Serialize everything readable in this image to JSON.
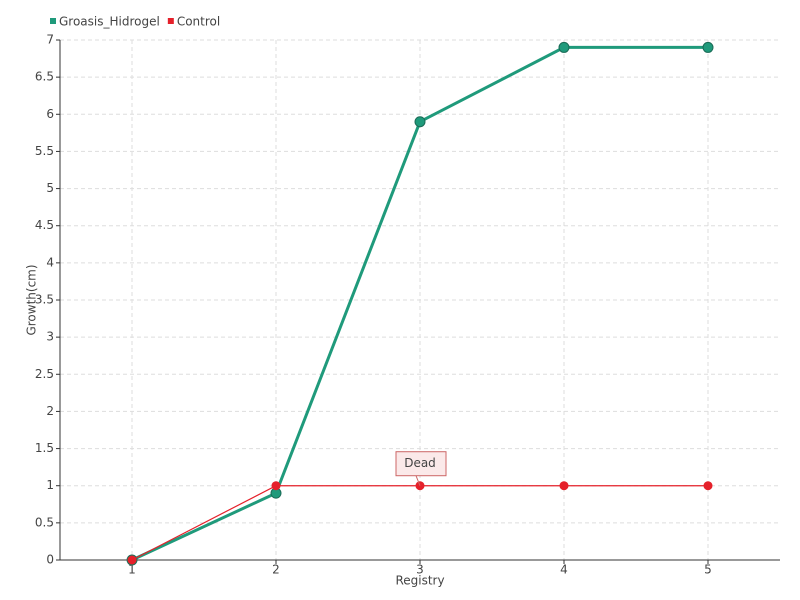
{
  "chart_data": {
    "type": "line",
    "x_label": "Registry",
    "y_label": "Growth(cm)",
    "x": [
      1,
      2,
      3,
      4,
      5
    ],
    "xlim": [
      0.5,
      5.5
    ],
    "xticks": [
      1,
      2,
      3,
      4,
      5
    ],
    "ylim": [
      0,
      7
    ],
    "yticks": [
      0,
      0.5,
      1,
      1.5,
      2,
      2.5,
      3,
      3.5,
      4,
      4.5,
      5,
      5.5,
      6,
      6.5,
      7
    ],
    "grid": true,
    "legend": "top-left",
    "series": [
      {
        "name": "Groasis_Hidrogel",
        "color": "#1f9a7b",
        "values": [
          0,
          0.9,
          5.9,
          6.9,
          6.9
        ]
      },
      {
        "name": "Control",
        "color": "#e5202a",
        "values": [
          0,
          1,
          1,
          1,
          1
        ]
      }
    ],
    "annotations": [
      {
        "text": "Dead",
        "x": 3,
        "y": 1
      }
    ]
  }
}
